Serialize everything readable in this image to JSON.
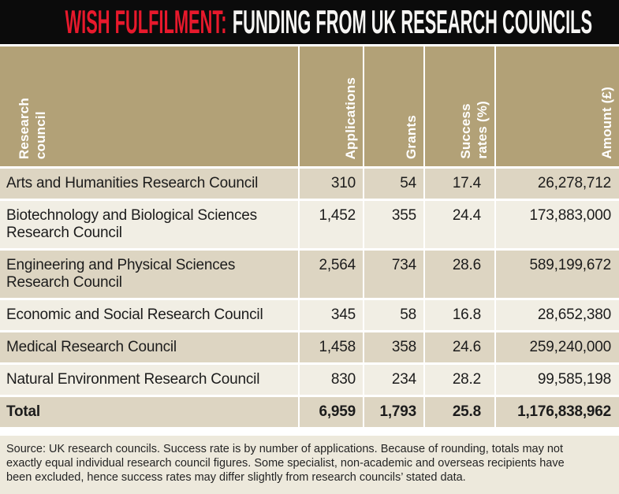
{
  "title": {
    "highlight": "WISH FULFILMENT:",
    "main": "FUNDING FROM UK RESEARCH COUNCILS"
  },
  "header": {
    "col_research": "Research\ncouncil",
    "col_applications": "Applications",
    "col_grants": "Grants",
    "col_success": "Success\nrates (%)",
    "col_amount": "Amount (£)"
  },
  "rows": [
    {
      "council": "Arts and Humanities Research Council",
      "applications": "310",
      "grants": "54",
      "success_rate": "17.4",
      "amount": "26,278,712"
    },
    {
      "council": "Biotechnology and Biological Sciences\nResearch Council",
      "applications": "1,452",
      "grants": "355",
      "success_rate": "24.4",
      "amount": "173,883,000"
    },
    {
      "council": "Engineering and Physical Sciences\nResearch Council",
      "applications": "2,564",
      "grants": "734",
      "success_rate": "28.6",
      "amount": "589,199,672"
    },
    {
      "council": "Economic and Social Research Council",
      "applications": "345",
      "grants": "58",
      "success_rate": "16.8",
      "amount": "28,652,380"
    },
    {
      "council": "Medical Research Council",
      "applications": "1,458",
      "grants": "358",
      "success_rate": "24.6",
      "amount": "259,240,000"
    },
    {
      "council": "Natural Environment Research Council",
      "applications": "830",
      "grants": "234",
      "success_rate": "28.2",
      "amount": "99,585,198"
    }
  ],
  "total": {
    "label": "Total",
    "applications": "6,959",
    "grants": "1,793",
    "success_rate": "25.8",
    "amount": "1,176,838,962"
  },
  "footer_note": "Source: UK research councils. Success rate is by number of applications. Because of rounding, totals may not\nexactly equal individual research council figures. Some specialist, non-academic and overseas recipients have\nbeen excluded, hence success rates may differ slightly from research councils’ stated data.",
  "colors": {
    "title_bar_bg": "#0b0b0b",
    "title_highlight": "#e8192c",
    "title_text": "#f6f5f3",
    "header_bg": "#b2a177",
    "row_dark": "#ddd5c2",
    "row_light": "#f1eee4",
    "footer_bg": "#ede9dc",
    "separator": "#ffffff",
    "body_text": "#1c1c1c"
  },
  "chart_data": {
    "type": "table",
    "title": "WISH FULFILMENT: FUNDING FROM UK RESEARCH COUNCILS",
    "columns": [
      "Research council",
      "Applications",
      "Grants",
      "Success rates (%)",
      "Amount (£)"
    ],
    "rows": [
      [
        "Arts and Humanities Research Council",
        310,
        54,
        17.4,
        26278712
      ],
      [
        "Biotechnology and Biological Sciences Research Council",
        1452,
        355,
        24.4,
        173883000
      ],
      [
        "Engineering and Physical Sciences Research Council",
        2564,
        734,
        28.6,
        589199672
      ],
      [
        "Economic and Social Research Council",
        345,
        58,
        16.8,
        28652380
      ],
      [
        "Medical Research Council",
        1458,
        358,
        24.6,
        259240000
      ],
      [
        "Natural Environment Research Council",
        830,
        234,
        28.2,
        99585198
      ]
    ],
    "total_row": [
      "Total",
      6959,
      1793,
      25.8,
      1176838962
    ],
    "source_note": "Source: UK research councils. Success rate is by number of applications. Because of rounding, totals may not exactly equal individual research council figures. Some specialist, non-academic and overseas recipients have been excluded, hence success rates may differ slightly from research councils’ stated data."
  }
}
